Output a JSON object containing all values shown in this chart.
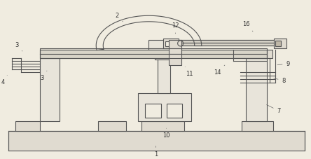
{
  "bg_color": "#f0ece0",
  "line_color": "#555555",
  "lw": 0.8,
  "fig_width": 4.44,
  "fig_height": 2.27,
  "dpi": 100
}
